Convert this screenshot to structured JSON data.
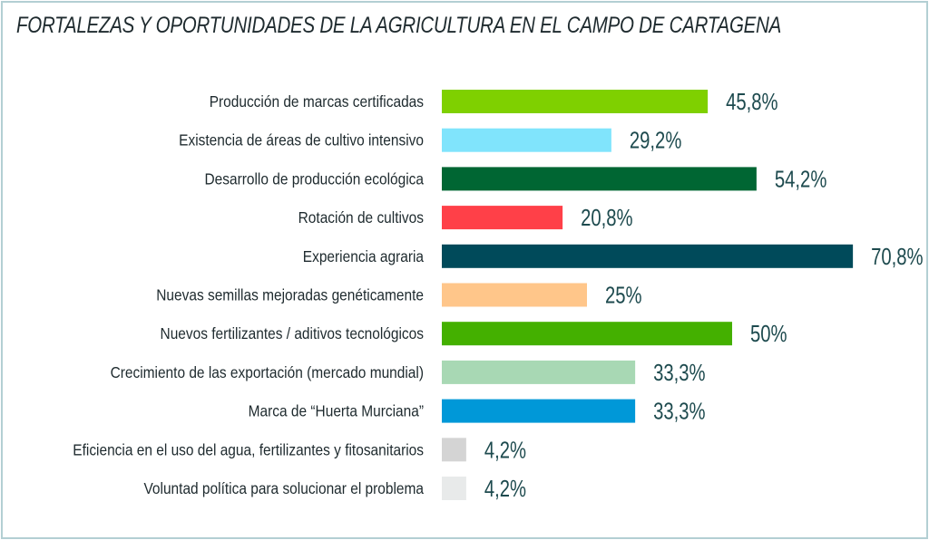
{
  "chart_data": {
    "type": "bar",
    "orientation": "horizontal",
    "title": "FORTALEZAS Y OPORTUNIDADES DE LA AGRICULTURA EN EL CAMPO DE CARTAGENA",
    "categories": [
      "Producción de marcas certificadas",
      "Existencia de áreas de cultivo intensivo",
      "Desarrollo de producción ecológica",
      "Rotación de cultivos",
      "Experiencia agraria",
      "Nuevas semillas mejoradas genéticamente",
      "Nuevos fertilizantes / aditivos tecnológicos",
      "Crecimiento de las exportación (mercado mundial)",
      "Marca de “Huerta Murciana”",
      "Eficiencia en el uso del agua, fertilizantes y fitosanitarios",
      "Voluntad política para solucionar el problema"
    ],
    "values": [
      45.8,
      29.2,
      54.2,
      20.8,
      70.8,
      25,
      50,
      33.3,
      33.3,
      4.2,
      4.2
    ],
    "value_labels": [
      "45,8%",
      "29,2%",
      "54,2%",
      "20,8%",
      "70,8%",
      "25%",
      "50%",
      "33,3%",
      "33,3%",
      "4,2%",
      "4,2%"
    ],
    "colors": [
      "#7fd000",
      "#80e4fc",
      "#006633",
      "#ff4048",
      "#004a5a",
      "#ffc68a",
      "#44b000",
      "#a8d8b4",
      "#0098d8",
      "#d4d4d4",
      "#e8eaea"
    ],
    "xlim": [
      0,
      72
    ],
    "grid": false,
    "legend": "none"
  }
}
